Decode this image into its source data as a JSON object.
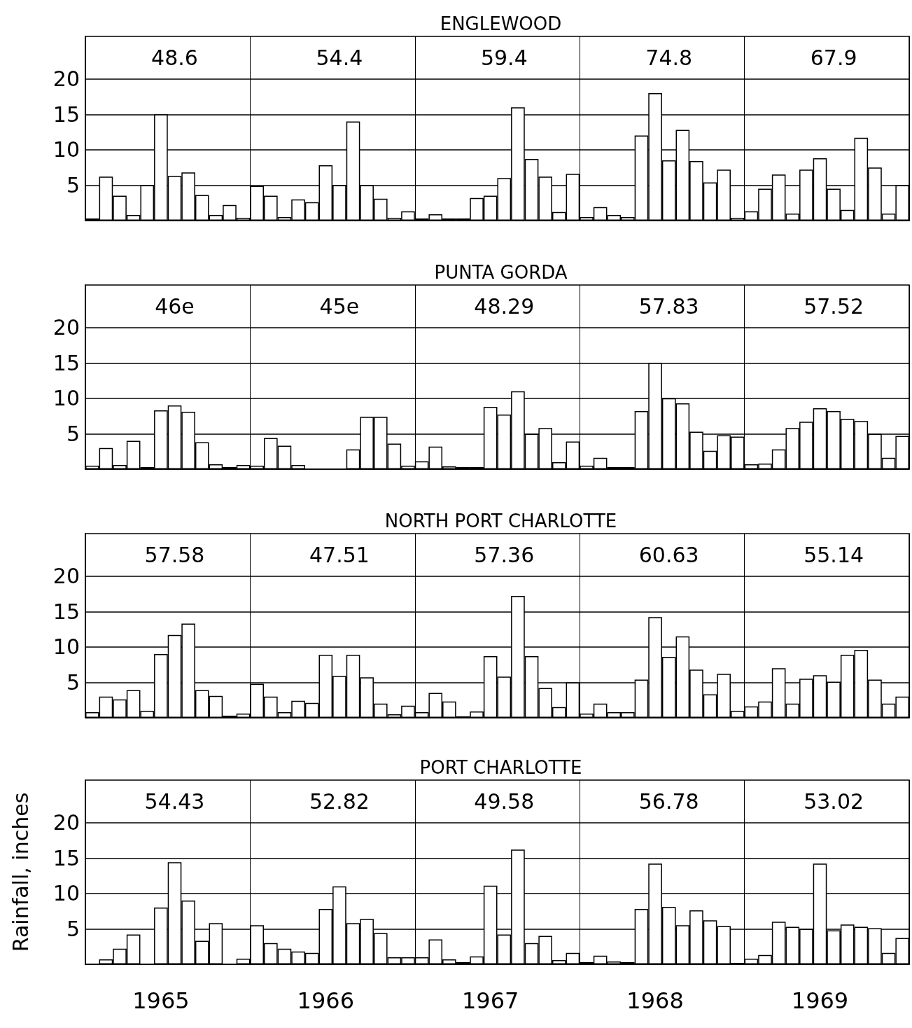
{
  "chart_data": [
    {
      "type": "bar",
      "title": "ENGLEWOOD",
      "color": "#ffffff",
      "ylim": [
        0,
        26
      ],
      "yticks": [
        5,
        10,
        15,
        20
      ],
      "grid": true,
      "tick_labels": "y",
      "categories": [
        null,
        null,
        null,
        null,
        null,
        "1965",
        null,
        null,
        null,
        null,
        null,
        null,
        null,
        null,
        null,
        null,
        null,
        "1966",
        null,
        null,
        null,
        null,
        null,
        null,
        null,
        null,
        null,
        null,
        null,
        "1967",
        null,
        null,
        null,
        null,
        null,
        null,
        null,
        null,
        null,
        null,
        null,
        "1968",
        null,
        null,
        null,
        null,
        null,
        null,
        null,
        null,
        null,
        null,
        null,
        "1969",
        null,
        null,
        null,
        null,
        null,
        null
      ],
      "values": [
        0.3,
        6.2,
        3.5,
        0.8,
        5,
        15,
        6.3,
        6.8,
        3.6,
        0.8,
        2.2,
        0.4,
        4.9,
        3.5,
        0.5,
        3.0,
        2.6,
        7.8,
        5.0,
        14,
        5.0,
        3.1,
        0.4,
        1.3,
        0.3,
        0.9,
        0.3,
        0.3,
        3.2,
        3.5,
        6.0,
        16,
        8.7,
        6.2,
        1.2,
        6.6,
        0.5,
        1.9,
        0.8,
        0.5,
        12,
        18,
        8.5,
        12.8,
        8.4,
        5.4,
        7.2,
        0.4,
        1.3,
        4.5,
        6.5,
        1.0,
        7.2,
        8.8,
        4.5,
        1.5,
        11.7,
        7.5,
        1.0,
        5.0
      ],
      "annotations": [
        "48.6",
        "54.4",
        "59.4",
        "74.8",
        "67.9"
      ]
    },
    {
      "type": "bar",
      "title": "PUNTA GORDA",
      "color": "#ffffff",
      "ylim": [
        0,
        26
      ],
      "yticks": [
        5,
        10,
        15,
        20
      ],
      "grid": true,
      "tick_labels": "y",
      "categories": [
        null,
        null,
        null,
        null,
        null,
        "1965",
        null,
        null,
        null,
        null,
        null,
        null,
        null,
        null,
        null,
        null,
        null,
        "1966",
        null,
        null,
        null,
        null,
        null,
        null,
        null,
        null,
        null,
        null,
        null,
        "1967",
        null,
        null,
        null,
        null,
        null,
        null,
        null,
        null,
        null,
        null,
        null,
        "1968",
        null,
        null,
        null,
        null,
        null,
        null,
        null,
        null,
        null,
        null,
        null,
        "1969",
        null,
        null,
        null,
        null,
        null,
        null
      ],
      "values": [
        0.5,
        3.0,
        0.6,
        4.0,
        0.3,
        8.3,
        9.0,
        8.1,
        3.8,
        0.7,
        0.3,
        0.6,
        0.5,
        4.4,
        3.3,
        0.6,
        0,
        0,
        0,
        2.8,
        7.4,
        7.4,
        3.6,
        0.5,
        1.1,
        3.2,
        0.4,
        0.3,
        0.3,
        8.8,
        7.7,
        11.0,
        5.0,
        5.8,
        1.0,
        3.9,
        0.5,
        1.6,
        0.3,
        0.3,
        8.2,
        15,
        10,
        9.3,
        5.3,
        2.6,
        4.8,
        4.6,
        0.7,
        0.8,
        2.8,
        5.8,
        6.7,
        8.6,
        8.2,
        7.1,
        6.8,
        5.0,
        1.6,
        4.7
      ],
      "annotations": [
        "46e",
        "45e",
        "48.29",
        "57.83",
        "57.52"
      ]
    },
    {
      "type": "bar",
      "title": "NORTH PORT CHARLOTTE",
      "color": "#ffffff",
      "ylim": [
        0,
        26
      ],
      "yticks": [
        5,
        10,
        15,
        20
      ],
      "grid": true,
      "tick_labels": "y",
      "categories": [
        null,
        null,
        null,
        null,
        null,
        "1965",
        null,
        null,
        null,
        null,
        null,
        null,
        null,
        null,
        null,
        null,
        null,
        "1966",
        null,
        null,
        null,
        null,
        null,
        null,
        null,
        null,
        null,
        null,
        null,
        "1967",
        null,
        null,
        null,
        null,
        null,
        null,
        null,
        null,
        null,
        null,
        null,
        "1968",
        null,
        null,
        null,
        null,
        null,
        null,
        null,
        null,
        null,
        null,
        null,
        "1969",
        null,
        null,
        null,
        null,
        null,
        null
      ],
      "values": [
        0.8,
        3.0,
        2.6,
        3.9,
        1.0,
        9.0,
        11.7,
        13.3,
        3.9,
        3.1,
        0.3,
        0.6,
        4.8,
        3.0,
        0.8,
        2.4,
        2.1,
        8.9,
        5.9,
        8.9,
        5.7,
        2.0,
        0.5,
        1.7,
        0.8,
        3.5,
        2.3,
        0.2,
        0.9,
        8.7,
        5.8,
        17.2,
        8.7,
        4.2,
        1.5,
        5.0,
        0.6,
        2.0,
        0.8,
        0.8,
        5.4,
        14.2,
        8.6,
        11.5,
        6.8,
        3.3,
        6.2,
        1.0,
        1.6,
        2.3,
        7.0,
        2.0,
        5.5,
        6.0,
        5.1,
        8.9,
        9.6,
        5.4,
        2.0,
        3.0
      ],
      "annotations": [
        "57.58",
        "47.51",
        "57.36",
        "60.63",
        "55.14"
      ]
    },
    {
      "type": "bar",
      "title": "PORT CHARLOTTE",
      "ylabel": "Rainfall, inches",
      "color": "#ffffff",
      "ylim": [
        0,
        26
      ],
      "yticks": [
        5,
        10,
        15,
        20
      ],
      "grid": true,
      "categories": [
        null,
        null,
        null,
        null,
        null,
        "1965",
        null,
        null,
        null,
        null,
        null,
        null,
        null,
        null,
        null,
        null,
        null,
        "1966",
        null,
        null,
        null,
        null,
        null,
        null,
        null,
        null,
        null,
        null,
        null,
        "1967",
        null,
        null,
        null,
        null,
        null,
        null,
        null,
        null,
        null,
        null,
        null,
        "1968",
        null,
        null,
        null,
        null,
        null,
        null,
        null,
        null,
        null,
        null,
        null,
        "1969",
        null,
        null,
        null,
        null,
        null,
        null
      ],
      "values": [
        0,
        0.7,
        2.2,
        4.2,
        0,
        8.0,
        14.4,
        9.0,
        3.3,
        5.8,
        0,
        0.8,
        5.5,
        3.0,
        2.2,
        1.8,
        1.6,
        7.8,
        11.0,
        5.8,
        6.4,
        4.4,
        1.0,
        1.0,
        1.0,
        3.5,
        0.7,
        0.3,
        1.1,
        11.1,
        4.2,
        16.2,
        3.0,
        4.0,
        0.6,
        1.6,
        0.3,
        1.2,
        0.4,
        0.3,
        7.8,
        14.2,
        8.1,
        5.5,
        7.6,
        6.2,
        5.4,
        0.2,
        0.8,
        1.3,
        6.0,
        5.3,
        5.0,
        14.2,
        4.8,
        5.6,
        5.3,
        5.1,
        1.6,
        3.7
      ],
      "annotations": [
        "54.43",
        "52.82",
        "49.58",
        "56.78",
        "53.02"
      ]
    }
  ]
}
